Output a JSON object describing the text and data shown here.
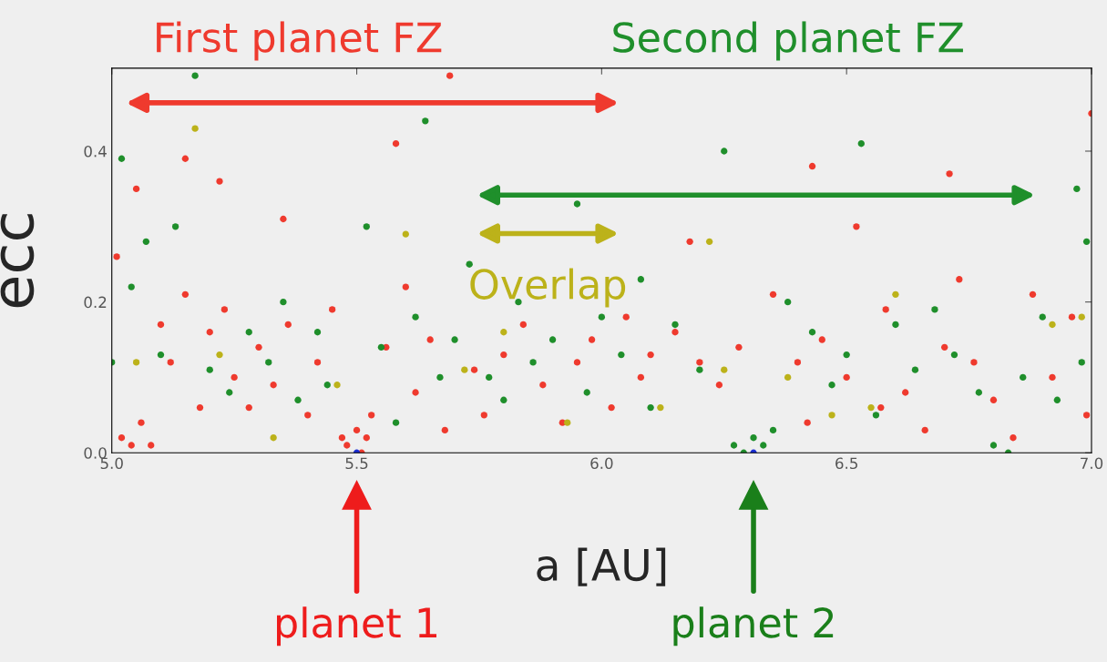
{
  "chart_data": {
    "type": "scatter",
    "xlabel": "a [AU]",
    "ylabel": "ecc",
    "xlim": [
      5.0,
      7.0
    ],
    "xticks": [
      {
        "value": 5.0,
        "label": "5.0"
      },
      {
        "value": 5.5,
        "label": "5.5"
      },
      {
        "value": 6.0,
        "label": "6.0"
      },
      {
        "value": 6.5,
        "label": "6.5"
      },
      {
        "value": 7.0,
        "label": "7.0"
      }
    ],
    "ylim": [
      0,
      0.51
    ],
    "yticks": [
      {
        "value": 0.0,
        "label": "0.0"
      },
      {
        "value": 0.2,
        "label": "0.2"
      },
      {
        "value": 0.4,
        "label": "0.4"
      }
    ],
    "grid": false,
    "legend": false,
    "marker": "circle",
    "series": [
      {
        "color": "#ef3a2e",
        "x": [
          5.69,
          5.58,
          5.15,
          5.05,
          5.22,
          5.35,
          6.18,
          6.52,
          6.71,
          6.43,
          7.0,
          5.01,
          5.02,
          5.04,
          5.06,
          5.08,
          5.1,
          5.12,
          5.15,
          5.18,
          5.2,
          5.23,
          5.25,
          5.28,
          5.3,
          5.33,
          5.36,
          5.4,
          5.42,
          5.45,
          5.47,
          5.48,
          5.5,
          5.51,
          5.52,
          5.53,
          5.56,
          5.6,
          5.62,
          5.65,
          5.68,
          5.74,
          5.76,
          5.8,
          5.84,
          5.88,
          5.92,
          5.95,
          5.98,
          6.02,
          6.05,
          6.08,
          6.1,
          6.15,
          6.2,
          6.24,
          6.28,
          6.35,
          6.4,
          6.42,
          6.45,
          6.5,
          6.57,
          6.58,
          6.62,
          6.66,
          6.7,
          6.73,
          6.76,
          6.8,
          6.84,
          6.88,
          6.92,
          6.96,
          6.99
        ],
        "values": [
          0.5,
          0.41,
          0.39,
          0.35,
          0.36,
          0.31,
          0.28,
          0.3,
          0.37,
          0.38,
          0.45,
          0.26,
          0.02,
          0.01,
          0.04,
          0.01,
          0.17,
          0.12,
          0.21,
          0.06,
          0.16,
          0.19,
          0.1,
          0.06,
          0.14,
          0.09,
          0.17,
          0.05,
          0.12,
          0.19,
          0.02,
          0.01,
          0.03,
          0.0,
          0.02,
          0.05,
          0.14,
          0.22,
          0.08,
          0.15,
          0.03,
          0.11,
          0.05,
          0.13,
          0.17,
          0.09,
          0.04,
          0.12,
          0.15,
          0.06,
          0.18,
          0.1,
          0.13,
          0.16,
          0.12,
          0.09,
          0.14,
          0.21,
          0.12,
          0.04,
          0.15,
          0.1,
          0.06,
          0.19,
          0.08,
          0.03,
          0.14,
          0.23,
          0.12,
          0.07,
          0.02,
          0.21,
          0.1,
          0.18,
          0.05
        ]
      },
      {
        "color": "#1f8f2b",
        "x": [
          5.0,
          5.02,
          5.04,
          5.07,
          5.1,
          5.13,
          5.17,
          5.2,
          5.24,
          5.28,
          5.32,
          5.35,
          5.38,
          5.42,
          5.44,
          5.52,
          5.55,
          5.58,
          5.62,
          5.64,
          5.67,
          5.7,
          5.73,
          5.77,
          5.8,
          5.83,
          5.86,
          5.9,
          5.95,
          5.97,
          6.0,
          6.04,
          6.08,
          6.1,
          6.15,
          6.2,
          6.25,
          6.27,
          6.29,
          6.31,
          6.33,
          6.35,
          6.38,
          6.43,
          6.47,
          6.5,
          6.53,
          6.56,
          6.6,
          6.64,
          6.68,
          6.72,
          6.77,
          6.8,
          6.83,
          6.86,
          6.9,
          6.93,
          6.97,
          6.99,
          6.98
        ],
        "values": [
          0.12,
          0.39,
          0.22,
          0.28,
          0.13,
          0.3,
          0.5,
          0.11,
          0.08,
          0.16,
          0.12,
          0.2,
          0.07,
          0.16,
          0.09,
          0.3,
          0.14,
          0.04,
          0.18,
          0.44,
          0.1,
          0.15,
          0.25,
          0.1,
          0.07,
          0.2,
          0.12,
          0.15,
          0.33,
          0.08,
          0.18,
          0.13,
          0.23,
          0.06,
          0.17,
          0.11,
          0.4,
          0.01,
          0.0,
          0.02,
          0.01,
          0.03,
          0.2,
          0.16,
          0.09,
          0.13,
          0.41,
          0.05,
          0.17,
          0.11,
          0.19,
          0.13,
          0.08,
          0.01,
          0.0,
          0.1,
          0.18,
          0.07,
          0.35,
          0.28,
          0.12
        ]
      },
      {
        "color": "#bcb21a",
        "x": [
          5.05,
          5.17,
          5.22,
          5.33,
          5.46,
          5.6,
          5.72,
          5.8,
          5.93,
          6.12,
          6.22,
          6.25,
          6.38,
          6.47,
          6.55,
          6.6,
          6.92,
          6.98
        ],
        "values": [
          0.12,
          0.43,
          0.13,
          0.02,
          0.09,
          0.29,
          0.11,
          0.16,
          0.04,
          0.06,
          0.28,
          0.11,
          0.1,
          0.05,
          0.06,
          0.21,
          0.17,
          0.18
        ]
      },
      {
        "color": "#1a2ed6",
        "x": [
          5.5,
          6.31
        ],
        "values": [
          0.0,
          0.0
        ]
      }
    ],
    "annotations": [
      "First planet FZ",
      "Second planet FZ",
      "Overlap"
    ],
    "ref_lines": [
      {
        "axis": "x",
        "value": 5.5,
        "label": "planet 1",
        "color": "#ee1c1c"
      },
      {
        "axis": "x",
        "value": 6.31,
        "label": "planet 2",
        "color": "#1a7f1a"
      }
    ]
  }
}
